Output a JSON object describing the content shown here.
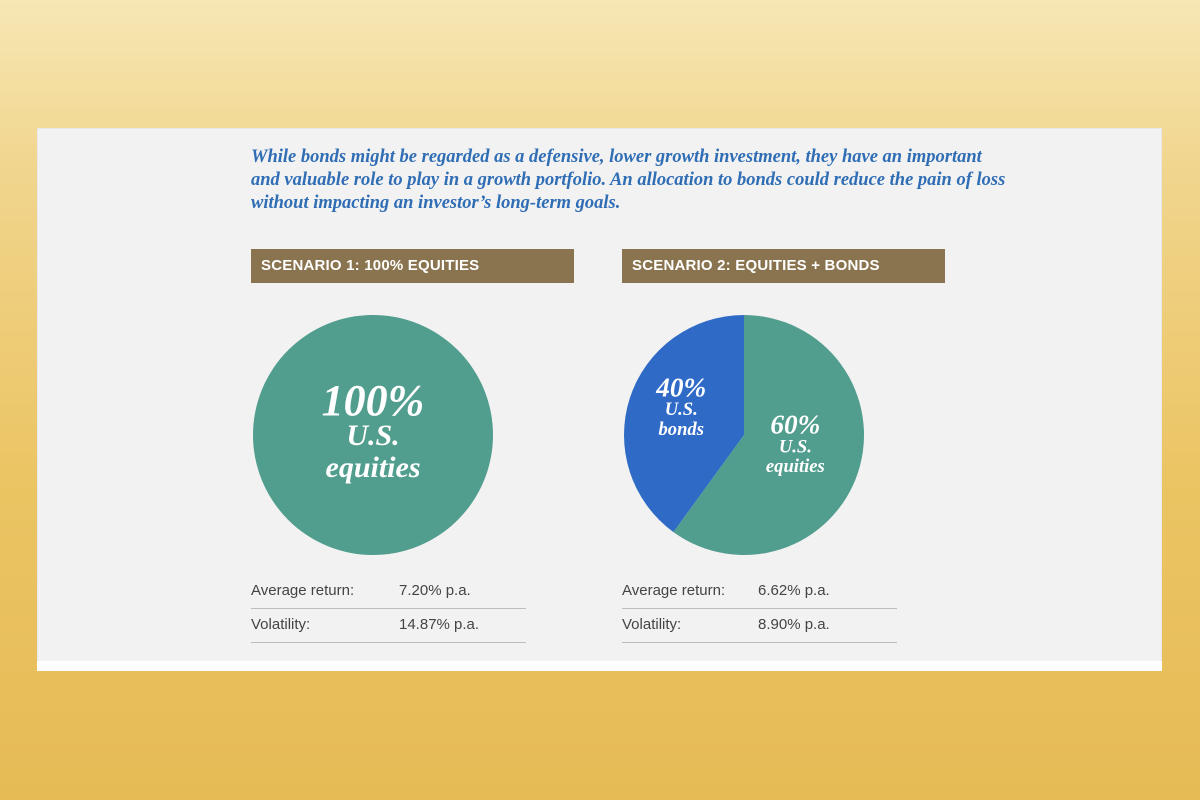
{
  "intro_text": "While bonds might be regarded as a defensive, lower growth investment, they have an important and valuable role to play in a growth portfolio. An allocation to bonds could reduce the pain of loss without impacting an investor’s long-term goals.",
  "colors": {
    "equities": "#519d8e",
    "bonds": "#2f6bc6",
    "header": "#8a744f",
    "intro_text": "#2f6db5"
  },
  "scenarios": [
    {
      "title": "SCENARIO 1: 100% EQUITIES",
      "stats": [
        {
          "label": "Average return:",
          "value": "7.20% p.a."
        },
        {
          "label": "Volatility:",
          "value": "14.87% p.a."
        }
      ]
    },
    {
      "title": "SCENARIO 2: EQUITIES + BONDS",
      "stats": [
        {
          "label": "Average return:",
          "value": "6.62% p.a."
        },
        {
          "label": "Volatility:",
          "value": "8.90% p.a."
        }
      ]
    }
  ],
  "chart_data": [
    {
      "type": "pie",
      "slices": [
        {
          "percent_label": "100%",
          "line1": "U.S.",
          "line2": "equities",
          "value": 100,
          "color": "#519d8e"
        }
      ]
    },
    {
      "type": "pie",
      "slices": [
        {
          "percent_label": "40%",
          "line1": "U.S.",
          "line2": "bonds",
          "value": 40,
          "color": "#2f6bc6"
        },
        {
          "percent_label": "60%",
          "line1": "U.S.",
          "line2": "equities",
          "value": 60,
          "color": "#519d8e"
        }
      ]
    }
  ]
}
